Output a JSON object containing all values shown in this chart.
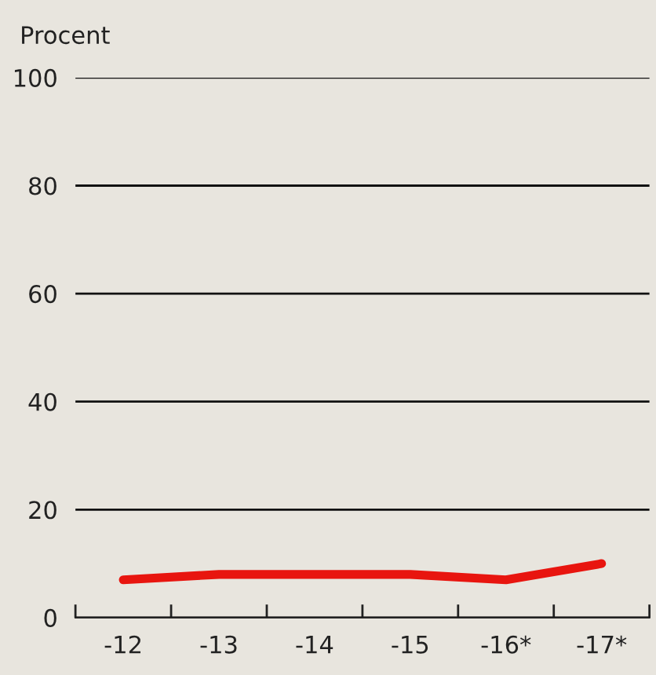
{
  "chart_data": {
    "type": "line",
    "ylabel": "Procent",
    "categories": [
      "-12",
      "-13",
      "-14",
      "-15",
      "-16*",
      "-17*"
    ],
    "series": [
      {
        "color": "#e8150f",
        "values": [
          7,
          8,
          8,
          8,
          7,
          10
        ]
      }
    ],
    "ylim": [
      0,
      100
    ],
    "yticks": [
      0,
      20,
      40,
      60,
      80,
      100
    ],
    "grid": "y",
    "legend": false
  }
}
